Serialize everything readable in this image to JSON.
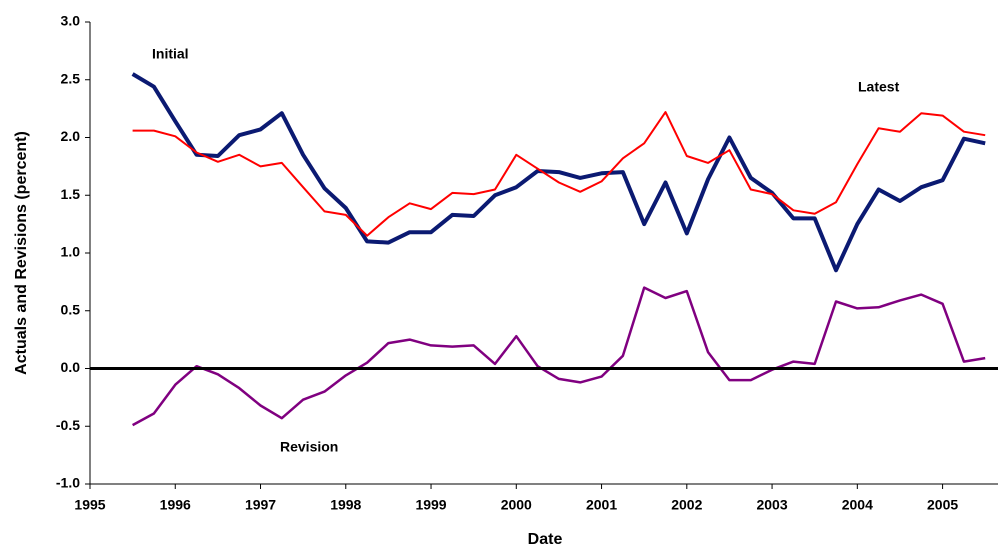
{
  "chart_data": {
    "type": "line",
    "xlabel": "Date",
    "ylabel": "Actuals and Revisions (percent)",
    "annotations": [
      "Initial",
      "Latest",
      "Revision"
    ],
    "x": [
      1995.5,
      1995.75,
      1996,
      1996.25,
      1996.5,
      1996.75,
      1997,
      1997.25,
      1997.5,
      1997.75,
      1998,
      1998.25,
      1998.5,
      1998.75,
      1999,
      1999.25,
      1999.5,
      1999.75,
      2000,
      2000.25,
      2000.5,
      2000.75,
      2001,
      2001.25,
      2001.5,
      2001.75,
      2002,
      2002.25,
      2002.5,
      2002.75,
      2003,
      2003.25,
      2003.5,
      2003.75,
      2004,
      2004.25,
      2004.5,
      2004.75,
      2005,
      2005.25,
      2005.5
    ],
    "series": [
      {
        "name": "Initial",
        "color": "#0b1a72",
        "values": [
          2.55,
          2.44,
          2.14,
          1.85,
          1.84,
          2.02,
          2.07,
          2.21,
          1.85,
          1.56,
          1.39,
          1.1,
          1.09,
          1.18,
          1.18,
          1.33,
          1.32,
          1.5,
          1.57,
          1.71,
          1.7,
          1.65,
          1.69,
          1.7,
          1.25,
          1.61,
          1.17,
          1.64,
          2.0,
          1.65,
          1.52,
          1.3,
          1.3,
          0.85,
          1.25,
          1.55,
          1.45,
          1.57,
          1.63,
          1.99,
          1.95
        ]
      },
      {
        "name": "Latest",
        "color": "#ff0000",
        "values": [
          2.06,
          2.06,
          2.01,
          1.87,
          1.79,
          1.85,
          1.75,
          1.78,
          1.57,
          1.36,
          1.33,
          1.15,
          1.31,
          1.43,
          1.38,
          1.52,
          1.51,
          1.55,
          1.85,
          1.73,
          1.61,
          1.53,
          1.62,
          1.82,
          1.95,
          2.22,
          1.84,
          1.78,
          1.89,
          1.55,
          1.51,
          1.37,
          1.34,
          1.44,
          1.77,
          2.08,
          2.05,
          2.21,
          2.19,
          2.05,
          2.02
        ]
      },
      {
        "name": "Revision",
        "color": "#800080",
        "values": [
          -0.49,
          -0.39,
          -0.14,
          0.02,
          -0.05,
          -0.17,
          -0.32,
          -0.43,
          -0.27,
          -0.2,
          -0.06,
          0.05,
          0.22,
          0.25,
          0.2,
          0.19,
          0.2,
          0.04,
          0.28,
          0.02,
          -0.09,
          -0.12,
          -0.07,
          0.11,
          0.7,
          0.61,
          0.67,
          0.14,
          -0.1,
          -0.1,
          -0.01,
          0.06,
          0.04,
          0.58,
          0.52,
          0.53,
          0.59,
          0.64,
          0.56,
          0.06,
          0.09
        ]
      }
    ],
    "xlim": [
      1995,
      2005.65
    ],
    "xticks": [
      1995,
      1996,
      1997,
      1998,
      1999,
      2000,
      2001,
      2002,
      2003,
      2004,
      2005
    ],
    "ylim": [
      -1,
      3
    ],
    "yticks": [
      {
        "value": -1,
        "label": "-1.0"
      },
      {
        "value": -0.5,
        "label": "-0.5"
      },
      {
        "value": 0,
        "label": "0.0"
      },
      {
        "value": 0.5,
        "label": "0.5"
      },
      {
        "value": 1,
        "label": "1.0"
      },
      {
        "value": 1.5,
        "label": "1.5"
      },
      {
        "value": 2,
        "label": "2.0"
      },
      {
        "value": 2.5,
        "label": "2.5"
      },
      {
        "value": 3,
        "label": "3.0"
      }
    ],
    "grid": false
  }
}
